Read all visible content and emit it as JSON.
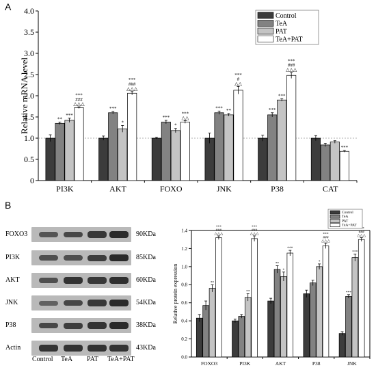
{
  "panels": {
    "a": "A",
    "b": "B"
  },
  "colors": {
    "Control": "#3c3c3c",
    "TeA": "#828282",
    "PAT": "#c4c4c4",
    "TeA+PAT": "#ffffff"
  },
  "chart_data": [
    {
      "type": "bar",
      "categories": [
        "PI3K",
        "AKT",
        "FOXO",
        "JNK",
        "P38",
        "CAT"
      ],
      "ylabel": "Relative mRNA level",
      "ylim": [
        0,
        4.0
      ],
      "yticks": [
        "0",
        "0.5",
        "1.0",
        "1.5",
        "2.0",
        "2.5",
        "3.0",
        "3.5",
        "4.0"
      ],
      "reference_line": 1.0,
      "legend": "top-right",
      "series": [
        {
          "name": "Control",
          "values": [
            1.0,
            1.0,
            1.0,
            1.0,
            1.0,
            1.0
          ],
          "errors": [
            0.08,
            0.05,
            0.02,
            0.12,
            0.07,
            0.06
          ]
        },
        {
          "name": "TeA",
          "values": [
            1.35,
            1.6,
            1.38,
            1.6,
            1.55,
            0.84
          ],
          "errors": [
            0.03,
            0.03,
            0.04,
            0.04,
            0.05,
            0.04
          ],
          "annotations": [
            "**",
            "***",
            "***",
            "***",
            "***",
            ""
          ]
        },
        {
          "name": "PAT",
          "values": [
            1.42,
            1.22,
            1.18,
            1.55,
            1.9,
            0.91
          ],
          "errors": [
            0.05,
            0.08,
            0.05,
            0.03,
            0.03,
            0.03
          ],
          "annotations": [
            "***",
            "*",
            "*",
            "**",
            "***",
            ""
          ]
        },
        {
          "name": "TeA+PAT",
          "values": [
            1.72,
            2.06,
            1.38,
            2.13,
            2.48,
            0.69
          ],
          "errors": [
            0.02,
            0.04,
            0.03,
            0.09,
            0.07,
            0.02
          ],
          "annotations": [
            [
              "***",
              "###",
              "△△△"
            ],
            [
              "***",
              "###",
              "△△△"
            ],
            [
              "***",
              "△△"
            ],
            [
              "***",
              "#",
              "△△"
            ],
            [
              "***",
              "###",
              "△△△"
            ],
            [
              "***"
            ]
          ]
        }
      ]
    },
    {
      "type": "bar",
      "categories": [
        "FOXO3",
        "PI3K",
        "AKT",
        "P38",
        "JNK"
      ],
      "ylabel": "Relative protein expression",
      "ylim": [
        0,
        1.4
      ],
      "yticks": [
        "0.0",
        "0.2",
        "0.4",
        "0.6",
        "0.8",
        "1.0",
        "1.2",
        "1.4"
      ],
      "legend": "top-right",
      "series": [
        {
          "name": "Control",
          "values": [
            0.43,
            0.4,
            0.62,
            0.7,
            0.26
          ],
          "errors": [
            0.04,
            0.02,
            0.03,
            0.04,
            0.02
          ]
        },
        {
          "name": "TeA",
          "values": [
            0.57,
            0.45,
            0.97,
            0.82,
            0.67
          ],
          "errors": [
            0.05,
            0.02,
            0.04,
            0.03,
            0.02
          ],
          "annotations": [
            "",
            "",
            "**",
            "",
            "***"
          ]
        },
        {
          "name": "PAT",
          "values": [
            0.76,
            0.66,
            0.89,
            1.0,
            1.1
          ],
          "errors": [
            0.04,
            0.04,
            0.05,
            0.03,
            0.04
          ],
          "annotations": [
            "**",
            "**",
            "*",
            "*",
            "***"
          ]
        },
        {
          "name": "TeA+PAT",
          "values": [
            1.32,
            1.31,
            1.15,
            1.23,
            1.3
          ],
          "errors": [
            0.02,
            0.03,
            0.03,
            0.03,
            0.02
          ],
          "annotations": [
            [
              "***",
              "###",
              "△△△"
            ],
            [
              "***",
              "###",
              "△△△"
            ],
            [
              "***"
            ],
            [
              "***",
              "###",
              "△△△"
            ],
            [
              "***",
              "###",
              "△△△"
            ]
          ]
        }
      ]
    }
  ],
  "western_blot": {
    "rows": [
      {
        "label": "FOXO3",
        "kda": "90KDa",
        "intensity": [
          0.55,
          0.7,
          0.85,
          1.0
        ]
      },
      {
        "label": "PI3K",
        "kda": "85KDa",
        "intensity": [
          0.6,
          0.6,
          0.8,
          1.0
        ]
      },
      {
        "label": "AKT",
        "kda": "60KDa",
        "intensity": [
          0.6,
          0.9,
          0.85,
          0.95
        ]
      },
      {
        "label": "JNK",
        "kda": "54KDa",
        "intensity": [
          0.4,
          0.7,
          0.85,
          1.0
        ]
      },
      {
        "label": "P38",
        "kda": "38KDa",
        "intensity": [
          0.7,
          0.8,
          0.9,
          1.0
        ]
      },
      {
        "label": "Actin",
        "kda": "43KDa",
        "intensity": [
          0.9,
          0.9,
          0.9,
          0.9
        ]
      }
    ],
    "lanes": [
      "Control",
      "TeA",
      "PAT",
      "TeA+PAT"
    ]
  }
}
